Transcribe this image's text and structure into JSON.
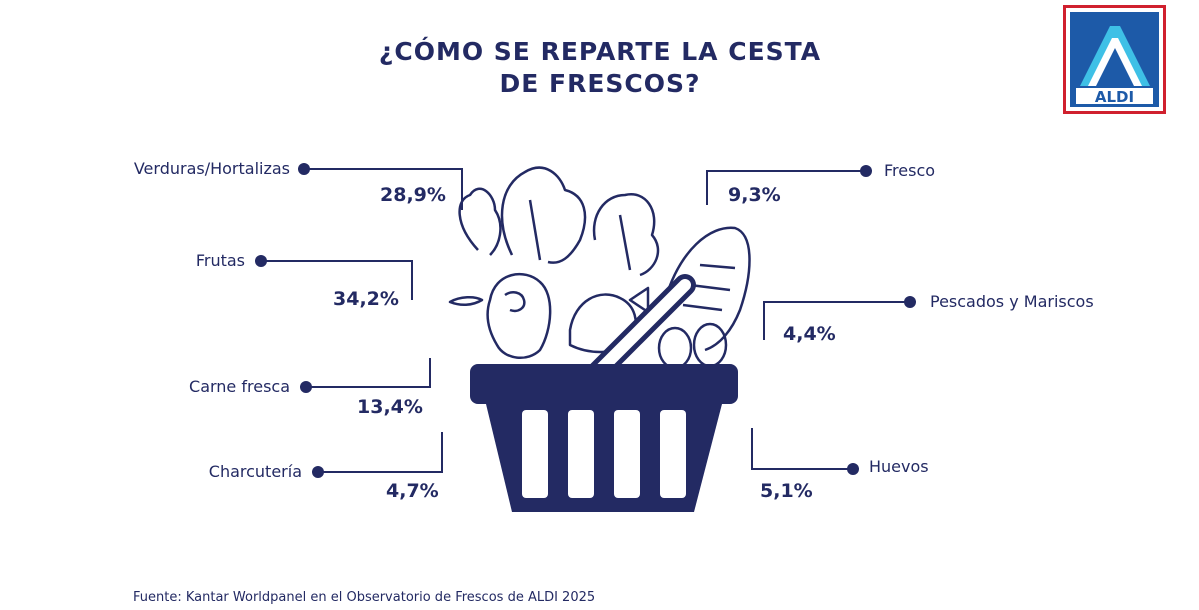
{
  "title": {
    "line1": "¿CÓMO SE REPARTE LA CESTA",
    "line2": "DE FRESCOS?"
  },
  "logo": {
    "text": "ALDI"
  },
  "source": "Fuente: Kantar Worldpanel en el Observatorio de Frescos de ALDI 2025",
  "colors": {
    "navy": "#232a63",
    "logo_border": "#d0202e",
    "logo_blue": "#1d5aa8",
    "logo_light": "#3ec0e6"
  },
  "chart_data": {
    "type": "pie",
    "title": "¿CÓMO SE REPARTE LA CESTA DE FRESCOS?",
    "categories": [
      "Verduras/Hortalizas",
      "Frutas",
      "Carne fresca",
      "Charcutería",
      "Fresco",
      "Pescados y Mariscos",
      "Huevos"
    ],
    "values": [
      28.9,
      34.2,
      13.4,
      4.7,
      9.3,
      4.4,
      5.1
    ],
    "value_labels": [
      "28,9%",
      "34,2%",
      "13,4%",
      "4,7%",
      "9,3%",
      "4,4%",
      "5,1%"
    ],
    "unit": "%"
  }
}
